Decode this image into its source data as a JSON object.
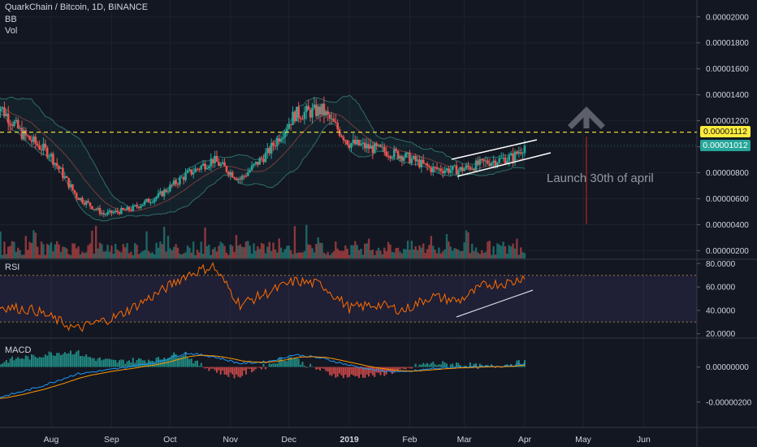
{
  "header": {
    "title": "QuarkChain / Bitcoin, 1D, BINANCE",
    "indicators": [
      "BB",
      "Vol"
    ]
  },
  "panes": {
    "rsi_label": "RSI",
    "macd_label": "MACD"
  },
  "annotation": {
    "text": "Launch 30th of april"
  },
  "price_labels": {
    "resistance": "0.00001112",
    "last": "0.00001012"
  },
  "colors": {
    "background": "#131722",
    "up": "#26a69a",
    "down": "#ef5350",
    "resistance": "#ffeb3b",
    "rsi_line": "#ff6d00",
    "macd_line": "#2196f3",
    "signal_line": "#ff9800",
    "annotation_arrow": "#b22222"
  },
  "chart_data": [
    {
      "type": "candlestick",
      "x": [
        "2018-07-03",
        "2018-07-17",
        "2018-07-31",
        "2018-08-14",
        "2018-08-28",
        "2018-09-11",
        "2018-09-25",
        "2018-10-09",
        "2018-10-23",
        "2018-11-06",
        "2018-11-20",
        "2018-12-04",
        "2018-12-18",
        "2019-01-01",
        "2019-01-15",
        "2019-01-29",
        "2019-02-12",
        "2019-02-26",
        "2019-03-12",
        "2019-03-26",
        "2019-04-01"
      ],
      "close": [
        1.36e-05,
        1.1e-05,
        9.5e-06,
        6.2e-06,
        4.8e-06,
        5.2e-06,
        6.2e-06,
        7.8e-06,
        9e-06,
        7.5e-06,
        9.5e-06,
        1.25e-05,
        1.28e-05,
        1.03e-05,
        9.8e-06,
        9.3e-06,
        8.3e-06,
        8.2e-06,
        8.8e-06,
        9.2e-06,
        1.01e-05
      ],
      "y_ticks": [
        "0.00000200",
        "0.00000400",
        "0.00000600",
        "0.00000800",
        "0.00001000",
        "0.00001200",
        "0.00001400",
        "0.00001600",
        "0.00001800",
        "0.00002000"
      ],
      "ylim": [
        1.4e-06,
        2.13e-05
      ],
      "horizontal_line": 1.112e-05,
      "indicators": [
        "BB",
        "Vol"
      ]
    },
    {
      "type": "line",
      "name": "RSI",
      "x": [
        "2018-07-03",
        "2018-07-24",
        "2018-08-14",
        "2018-09-04",
        "2018-09-25",
        "2018-10-09",
        "2018-10-23",
        "2018-11-06",
        "2018-11-20",
        "2018-12-04",
        "2018-12-18",
        "2019-01-01",
        "2019-01-15",
        "2019-01-29",
        "2019-02-12",
        "2019-02-26",
        "2019-03-12",
        "2019-03-26",
        "2019-04-01"
      ],
      "values": [
        44,
        40,
        24,
        35,
        55,
        70,
        78,
        45,
        55,
        65,
        62,
        42,
        45,
        40,
        52,
        48,
        62,
        64,
        70
      ],
      "y_ticks": [
        "20.0000",
        "40.0000",
        "60.0000",
        "80.0000"
      ],
      "ylim": [
        17,
        83
      ],
      "bands": [
        30,
        70
      ]
    },
    {
      "type": "line",
      "name": "MACD",
      "x": [
        "2018-07-03",
        "2018-07-24",
        "2018-08-14",
        "2018-09-04",
        "2018-09-25",
        "2018-10-09",
        "2018-10-23",
        "2018-11-06",
        "2018-11-20",
        "2018-12-04",
        "2018-12-18",
        "2019-01-01",
        "2019-01-15",
        "2019-01-29",
        "2019-02-12",
        "2019-02-26",
        "2019-03-12",
        "2019-03-26",
        "2019-04-01"
      ],
      "values": [
        -1.8e-06,
        -1.2e-06,
        -4e-07,
        -1e-07,
        3e-07,
        8e-07,
        6e-07,
        2e-07,
        3e-07,
        7e-07,
        5e-07,
        1e-07,
        -2e-07,
        -3e-07,
        -1e-07,
        0.0,
        0.0,
        1e-07,
        2e-07
      ],
      "y_ticks": [
        "-0.00000200",
        "0.00000000"
      ],
      "ylim": [
        -3.4e-06,
        1.6e-06
      ]
    }
  ],
  "x_axis": {
    "ticks": [
      {
        "label": "Aug",
        "date": "2018-08-01"
      },
      {
        "label": "Sep",
        "date": "2018-09-01"
      },
      {
        "label": "Oct",
        "date": "2018-10-01"
      },
      {
        "label": "Nov",
        "date": "2018-11-01"
      },
      {
        "label": "Dec",
        "date": "2018-12-01"
      },
      {
        "label": "2019",
        "date": "2019-01-01"
      },
      {
        "label": "Feb",
        "date": "2019-02-01"
      },
      {
        "label": "Mar",
        "date": "2019-03-01"
      },
      {
        "label": "Apr",
        "date": "2019-04-01"
      },
      {
        "label": "May",
        "date": "2019-05-01"
      },
      {
        "label": "Jun",
        "date": "2019-06-01"
      }
    ]
  }
}
